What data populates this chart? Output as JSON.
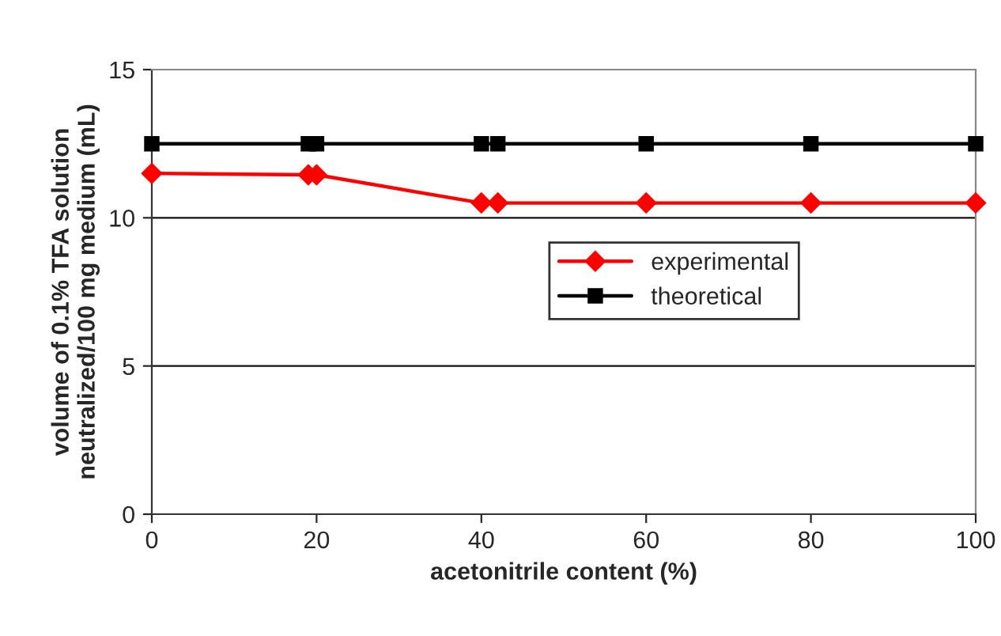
{
  "chart_data": {
    "type": "line",
    "xlabel": "acetonitrile content (%)",
    "ylabel": "volume of 0.1% TFA solution\nneutralized/100 mg medium (mL)",
    "xlim": [
      0,
      100
    ],
    "xticks": [
      0,
      20,
      40,
      60,
      80,
      100
    ],
    "ylim": [
      0,
      15
    ],
    "yticks": [
      0,
      5,
      10,
      15
    ],
    "grid": "y",
    "legend": "center right",
    "series": [
      {
        "name": "experimental",
        "color": "#ff0000",
        "marker": "diamond",
        "x": [
          0,
          19,
          20,
          40,
          42,
          60,
          80,
          100
        ],
        "values": [
          11.5,
          11.45,
          11.45,
          10.5,
          10.5,
          10.5,
          10.5,
          10.5
        ]
      },
      {
        "name": "theoretical",
        "color": "#000000",
        "marker": "square",
        "x": [
          0,
          19,
          20,
          40,
          42,
          60,
          80,
          100
        ],
        "values": [
          12.5,
          12.5,
          12.5,
          12.5,
          12.5,
          12.5,
          12.5,
          12.5
        ]
      }
    ]
  }
}
